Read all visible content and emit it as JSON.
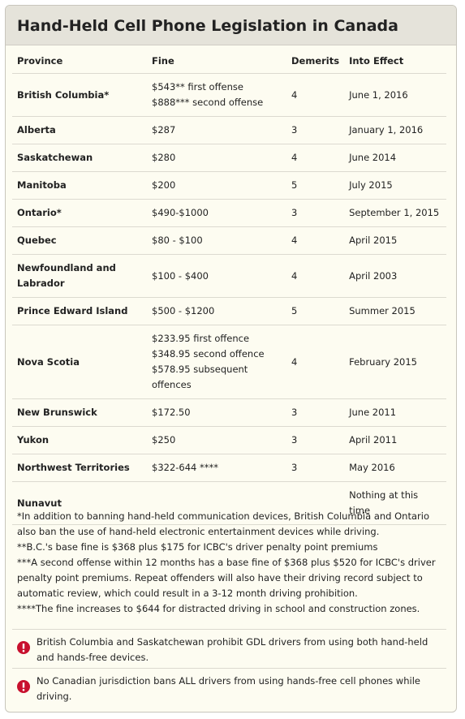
{
  "header": {
    "title": "Hand-Held Cell Phone Legislation in Canada"
  },
  "table": {
    "columns": [
      "Province",
      "Fine",
      "Demerits",
      "Into Effect"
    ],
    "rows": [
      {
        "province": "British Columbia*",
        "fine": [
          "$543** first offense",
          "$888*** second offense"
        ],
        "demerits": 4,
        "effect": "June 1, 2016"
      },
      {
        "province": "Alberta",
        "fine": [
          "$287"
        ],
        "demerits": 3,
        "effect": "January 1, 2016"
      },
      {
        "province": "Saskatchewan",
        "fine": [
          "$280"
        ],
        "demerits": 4,
        "effect": "June 2014"
      },
      {
        "province": "Manitoba",
        "fine": [
          "$200"
        ],
        "demerits": 5,
        "effect": "July 2015"
      },
      {
        "province": "Ontario*",
        "fine": [
          "$490-$1000"
        ],
        "demerits": 3,
        "effect": "September 1, 2015"
      },
      {
        "province": "Quebec",
        "fine": [
          "$80 - $100"
        ],
        "demerits": 4,
        "effect": "April 2015"
      },
      {
        "province": "Newfoundland and Labrador",
        "fine": [
          "$100 - $400"
        ],
        "demerits": 4,
        "effect": "April 2003"
      },
      {
        "province": "Prince Edward Island",
        "fine": [
          "$500 - $1200"
        ],
        "demerits": 5,
        "effect": "Summer 2015"
      },
      {
        "province": "Nova Scotia",
        "fine": [
          "$233.95 first offence",
          "$348.95 second offence",
          "$578.95 subsequent offences"
        ],
        "demerits": 4,
        "effect": "February 2015"
      },
      {
        "province": "New Brunswick",
        "fine": [
          "$172.50"
        ],
        "demerits": 3,
        "effect": "June 2011"
      },
      {
        "province": "Yukon",
        "fine": [
          "$250"
        ],
        "demerits": 3,
        "effect": "April 2011"
      },
      {
        "province": "Northwest Territories",
        "fine": [
          "$322-644 ****"
        ],
        "demerits": 3,
        "effect": "May 2016"
      },
      {
        "province": "Nunavut",
        "effect": "Nothing at this time"
      }
    ]
  },
  "footnotes": [
    "*In addition to banning hand-held communication devices, British Columbia and Ontario also ban the use of hand-held electronic entertainment devices while driving.",
    "**B.C.'s base fine is $368 plus $175 for ICBC's driver penalty point premiums",
    "***A second offense within 12 months has a base fine of $368 plus $520 for ICBC's driver penalty point premiums. Repeat offenders will also have their driving record subject to automatic review, which could result in a 3-12 month driving prohibition.",
    "****The fine increases to $644 for distracted driving in school and construction zones."
  ],
  "alerts": [
    "British Columbia and Saskatchewan prohibit GDL drivers from using both hand-held and hands-free devices.",
    "No Canadian jurisdiction bans ALL drivers from using hands-free cell phones while driving."
  ]
}
